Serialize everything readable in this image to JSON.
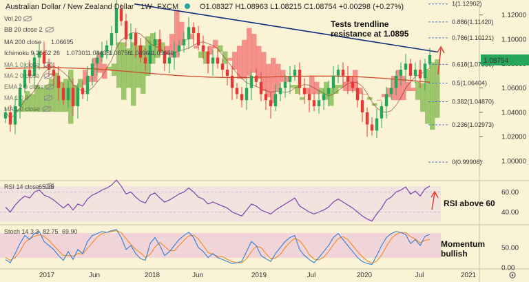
{
  "header": {
    "title": "Australian Dollar / New Zealand Dollar",
    "timeframe": "1W",
    "source": "FXCM",
    "ohlc": "O1.08327 H1.08963 L1.08215 C1.08754 +0.00298 (+0.27%)"
  },
  "indicators": {
    "vol": "Vol 20",
    "bb": "BB 20 close 2",
    "ma200": "MA 200 close",
    "ma200_value": "1.06695",
    "ichimoku": "Ichimoku 9 26 52 26",
    "ichimoku_values": [
      "1.07301",
      "1.04435",
      "1.08756",
      "1.04966",
      "1.05650"
    ],
    "ghost": [
      "MA 1 0 close",
      "MA 2 0 close",
      "EMA 2 0 close",
      "MA 1 0 0",
      "MA 1 0 close"
    ]
  },
  "annotations": {
    "trendline": "Tests trendline\nresistance at 1.0895",
    "rsi": "RSI above 60",
    "stoch": "Momentum\nbullish"
  },
  "rsi_panel": {
    "label": "RSI 14 close",
    "value": "65.96"
  },
  "stoch_panel": {
    "label": "Stoch 14 3 3",
    "k": "82.75",
    "d": "69.90"
  },
  "colors": {
    "up": "#26a65b",
    "down": "#e53935",
    "trend": "#0d2a7a",
    "rsi": "#7b3fb0",
    "stochK": "#2e7dd7",
    "stochD": "#f08a24",
    "kumoBull": "#7fb84a",
    "kumoBear": "#f07070"
  },
  "chart_data": [
    {
      "type": "candlestick",
      "title": "Australian Dollar / New Zealand Dollar · 1W · FXCM",
      "xlabel": "",
      "ylabel": "",
      "ylim": [
        0.985,
        1.13
      ],
      "y_ticks": [
        "1.12000",
        "1.10000",
        "1.08000",
        "1.06000",
        "1.04000",
        "1.02000",
        "1.00000"
      ],
      "x_ticks": [
        "2017",
        "Jun",
        "2018",
        "Jun",
        "2019",
        "Jul",
        "2020",
        "Jul",
        "2021"
      ],
      "last_price": "1.08754",
      "fib_levels": [
        {
          "label": "1(1.12902)",
          "value": 1.12902
        },
        {
          "label": "0.886(1.11420)",
          "value": 1.1142
        },
        {
          "label": "0.786(1.10121)",
          "value": 1.10121
        },
        {
          "label": "0.618(1.07938)",
          "value": 1.07938
        },
        {
          "label": "0.5(1.06404)",
          "value": 1.06404
        },
        {
          "label": "0.382(1.04870)",
          "value": 1.0487
        },
        {
          "label": "0.236(1.02973)",
          "value": 1.02973
        },
        {
          "label": "0(0.99906)",
          "value": 0.99906
        }
      ],
      "trendline": [
        {
          "x": "2017-11",
          "y": 1.129
        },
        {
          "x": "2020-08",
          "y": 1.0895
        }
      ],
      "closes": [
        1.04,
        1.03,
        1.045,
        1.06,
        1.075,
        1.07,
        1.085,
        1.09,
        1.08,
        1.075,
        1.07,
        1.06,
        1.05,
        1.06,
        1.045,
        1.06,
        1.055,
        1.07,
        1.08,
        1.085,
        1.09,
        1.095,
        1.105,
        1.125,
        1.115,
        1.1,
        1.105,
        1.095,
        1.085,
        1.08,
        1.095,
        1.1,
        1.09,
        1.08,
        1.085,
        1.09,
        1.095,
        1.1,
        1.11,
        1.105,
        1.095,
        1.09,
        1.08,
        1.085,
        1.08,
        1.075,
        1.07,
        1.06,
        1.055,
        1.05,
        1.06,
        1.07,
        1.065,
        1.055,
        1.05,
        1.045,
        1.055,
        1.06,
        1.065,
        1.07,
        1.075,
        1.06,
        1.055,
        1.05,
        1.045,
        1.05,
        1.055,
        1.06,
        1.07,
        1.075,
        1.07,
        1.065,
        1.06,
        1.05,
        1.04,
        1.03,
        1.025,
        1.035,
        1.045,
        1.055,
        1.06,
        1.07,
        1.075,
        1.08,
        1.07,
        1.075,
        1.068,
        1.08,
        1.087
      ]
    },
    {
      "type": "line",
      "title": "RSI 14 close",
      "ylim": [
        30,
        70
      ],
      "y_ticks": [
        "60.00",
        "40.00"
      ],
      "value": 65.96,
      "series": [
        {
          "name": "RSI 14 close",
          "values": [
            45,
            40,
            47,
            52,
            56,
            54,
            60,
            62,
            57,
            55,
            52,
            48,
            44,
            48,
            42,
            48,
            46,
            53,
            57,
            59,
            62,
            64,
            67,
            72,
            66,
            58,
            60,
            55,
            51,
            49,
            57,
            59,
            54,
            50,
            52,
            55,
            58,
            60,
            64,
            60,
            55,
            53,
            48,
            50,
            48,
            46,
            44,
            40,
            38,
            36,
            42,
            48,
            46,
            42,
            40,
            38,
            42,
            45,
            48,
            51,
            54,
            46,
            43,
            40,
            38,
            40,
            42,
            45,
            50,
            53,
            50,
            47,
            44,
            40,
            36,
            33,
            31,
            38,
            44,
            52,
            55,
            60,
            62,
            65,
            58,
            61,
            56,
            63,
            66
          ]
        }
      ]
    },
    {
      "type": "line",
      "title": "Stoch 14 3 3",
      "ylim": [
        0,
        100
      ],
      "y_ticks": [
        "50.00",
        "0.00"
      ],
      "k_value": 82.75,
      "d_value": 69.9,
      "series": [
        {
          "name": "Stoch 14 3 3",
          "values": [
            20,
            12,
            35,
            60,
            80,
            70,
            85,
            90,
            65,
            55,
            45,
            30,
            18,
            40,
            20,
            45,
            35,
            65,
            80,
            85,
            90,
            88,
            92,
            95,
            75,
            45,
            55,
            35,
            22,
            18,
            60,
            75,
            55,
            30,
            40,
            55,
            70,
            80,
            88,
            75,
            50,
            40,
            25,
            35,
            25,
            20,
            15,
            10,
            12,
            15,
            40,
            65,
            55,
            30,
            22,
            15,
            35,
            50,
            65,
            75,
            80,
            45,
            30,
            20,
            12,
            25,
            40,
            55,
            75,
            85,
            70,
            55,
            40,
            25,
            15,
            10,
            8,
            30,
            55,
            75,
            85,
            90,
            88,
            82,
            60,
            70,
            55,
            78,
            83
          ]
        },
        {
          "name": "Stoch 14 3 3",
          "values": [
            25,
            18,
            25,
            40,
            62,
            72,
            78,
            82,
            78,
            68,
            55,
            42,
            30,
            30,
            28,
            35,
            34,
            48,
            62,
            76,
            85,
            88,
            90,
            92,
            87,
            72,
            58,
            45,
            37,
            25,
            33,
            51,
            63,
            53,
            42,
            42,
            55,
            68,
            79,
            81,
            71,
            55,
            38,
            33,
            28,
            27,
            20,
            15,
            12,
            12,
            22,
            40,
            53,
            50,
            35,
            22,
            24,
            33,
            50,
            63,
            73,
            67,
            52,
            32,
            21,
            19,
            26,
            40,
            57,
            72,
            77,
            70,
            55,
            40,
            27,
            17,
            11,
            16,
            31,
            53,
            72,
            83,
            88,
            87,
            77,
            71,
            62,
            68,
            70
          ]
        }
      ]
    }
  ]
}
